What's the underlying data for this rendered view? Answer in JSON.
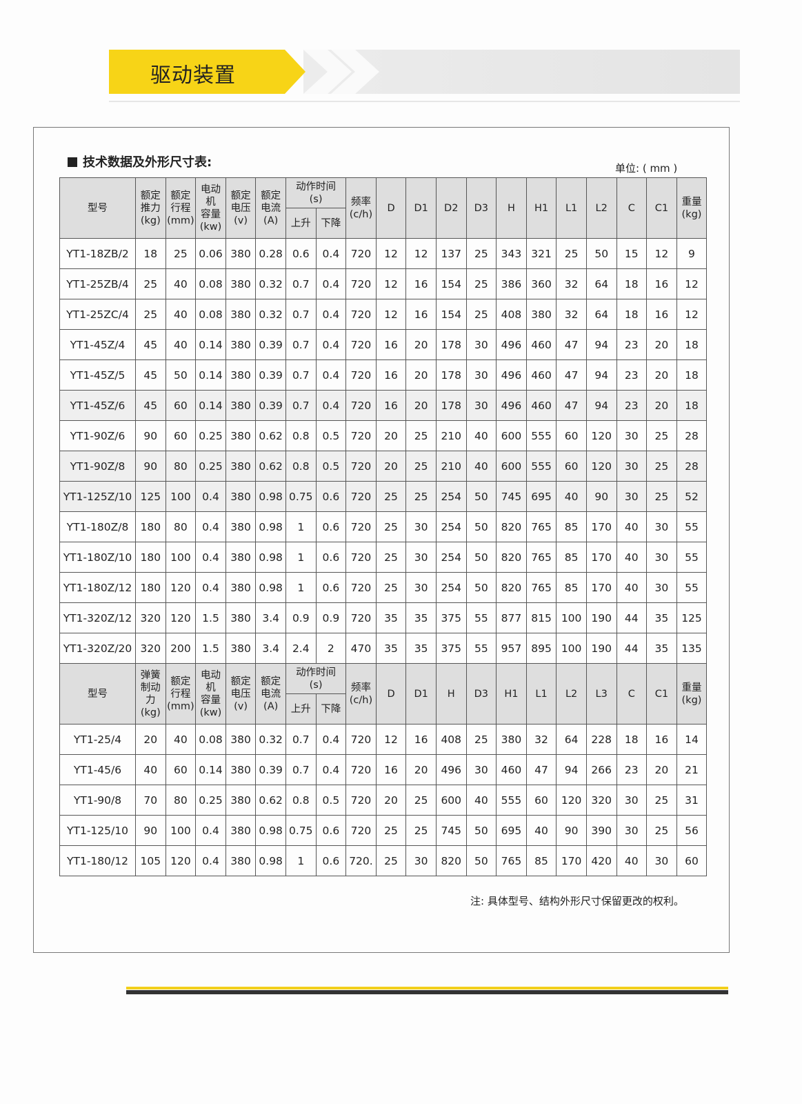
{
  "header": {
    "title": "驱动装置"
  },
  "section": {
    "title": "技术数据及外形尺寸表:",
    "unit": "单位: ( mm )"
  },
  "table1": {
    "model_header": "型号",
    "col_headers": [
      "额定\n推力\n(kg)",
      "额定\n行程\n(mm)",
      "电动机\n容量\n(kw)",
      "额定\n电压\n(v)",
      "额定\n电流\n(A)"
    ],
    "time_header": "动作时间\n(s)",
    "time_sub": [
      "上升",
      "下降"
    ],
    "freq_header": "频率\n(c/h)",
    "dim_headers": [
      "D",
      "D1",
      "D2",
      "D3",
      "H",
      "H1",
      "L1",
      "L2",
      "C",
      "C1"
    ],
    "weight_header": "重量\n(kg)",
    "rows": [
      [
        "YT1-18ZB/2",
        "18",
        "25",
        "0.06",
        "380",
        "0.28",
        "0.6",
        "0.4",
        "720",
        "12",
        "12",
        "137",
        "25",
        "343",
        "321",
        "25",
        "50",
        "15",
        "12",
        "9"
      ],
      [
        "YT1-25ZB/4",
        "25",
        "40",
        "0.08",
        "380",
        "0.32",
        "0.7",
        "0.4",
        "720",
        "12",
        "16",
        "154",
        "25",
        "386",
        "360",
        "32",
        "64",
        "18",
        "16",
        "12"
      ],
      [
        "YT1-25ZC/4",
        "25",
        "40",
        "0.08",
        "380",
        "0.32",
        "0.7",
        "0.4",
        "720",
        "12",
        "16",
        "154",
        "25",
        "408",
        "380",
        "32",
        "64",
        "18",
        "16",
        "12"
      ],
      [
        "YT1-45Z/4",
        "45",
        "40",
        "0.14",
        "380",
        "0.39",
        "0.7",
        "0.4",
        "720",
        "16",
        "20",
        "178",
        "30",
        "496",
        "460",
        "47",
        "94",
        "23",
        "20",
        "18"
      ],
      [
        "YT1-45Z/5",
        "45",
        "50",
        "0.14",
        "380",
        "0.39",
        "0.7",
        "0.4",
        "720",
        "16",
        "20",
        "178",
        "30",
        "496",
        "460",
        "47",
        "94",
        "23",
        "20",
        "18"
      ],
      [
        "YT1-45Z/6",
        "45",
        "60",
        "0.14",
        "380",
        "0.39",
        "0.7",
        "0.4",
        "720",
        "16",
        "20",
        "178",
        "30",
        "496",
        "460",
        "47",
        "94",
        "23",
        "20",
        "18"
      ],
      [
        "YT1-90Z/6",
        "90",
        "60",
        "0.25",
        "380",
        "0.62",
        "0.8",
        "0.5",
        "720",
        "20",
        "25",
        "210",
        "40",
        "600",
        "555",
        "60",
        "120",
        "30",
        "25",
        "28"
      ],
      [
        "YT1-90Z/8",
        "90",
        "80",
        "0.25",
        "380",
        "0.62",
        "0.8",
        "0.5",
        "720",
        "20",
        "25",
        "210",
        "40",
        "600",
        "555",
        "60",
        "120",
        "30",
        "25",
        "28"
      ],
      [
        "YT1-125Z/10",
        "125",
        "100",
        "0.4",
        "380",
        "0.98",
        "0.75",
        "0.6",
        "720",
        "25",
        "25",
        "254",
        "50",
        "745",
        "695",
        "40",
        "90",
        "30",
        "25",
        "52"
      ],
      [
        "YT1-180Z/8",
        "180",
        "80",
        "0.4",
        "380",
        "0.98",
        "1",
        "0.6",
        "720",
        "25",
        "30",
        "254",
        "50",
        "820",
        "765",
        "85",
        "170",
        "40",
        "30",
        "55"
      ],
      [
        "YT1-180Z/10",
        "180",
        "100",
        "0.4",
        "380",
        "0.98",
        "1",
        "0.6",
        "720",
        "25",
        "30",
        "254",
        "50",
        "820",
        "765",
        "85",
        "170",
        "40",
        "30",
        "55"
      ],
      [
        "YT1-180Z/12",
        "180",
        "120",
        "0.4",
        "380",
        "0.98",
        "1",
        "0.6",
        "720",
        "25",
        "30",
        "254",
        "50",
        "820",
        "765",
        "85",
        "170",
        "40",
        "30",
        "55"
      ],
      [
        "YT1-320Z/12",
        "320",
        "120",
        "1.5",
        "380",
        "3.4",
        "0.9",
        "0.9",
        "720",
        "35",
        "35",
        "375",
        "55",
        "877",
        "815",
        "100",
        "190",
        "44",
        "35",
        "125"
      ],
      [
        "YT1-320Z/20",
        "320",
        "200",
        "1.5",
        "380",
        "3.4",
        "2.4",
        "2",
        "470",
        "35",
        "35",
        "375",
        "55",
        "957",
        "895",
        "100",
        "190",
        "44",
        "35",
        "135"
      ]
    ]
  },
  "table2": {
    "model_header": "型号",
    "col_headers": [
      "弹簧\n制动力\n(kg)",
      "额定\n行程\n(mm)",
      "电动机\n容量\n(kw)",
      "额定\n电压\n(v)",
      "额定\n电流\n(A)"
    ],
    "time_header": "动作时间\n(s)",
    "time_sub": [
      "上升",
      "下降"
    ],
    "freq_header": "频率\n(c/h)",
    "dim_headers": [
      "D",
      "D1",
      "H",
      "D3",
      "H1",
      "L1",
      "L2",
      "L3",
      "C",
      "C1"
    ],
    "weight_header": "重量\n(kg)",
    "rows": [
      [
        "YT1-25/4",
        "20",
        "40",
        "0.08",
        "380",
        "0.32",
        "0.7",
        "0.4",
        "720",
        "12",
        "16",
        "408",
        "25",
        "380",
        "32",
        "64",
        "228",
        "18",
        "16",
        "14"
      ],
      [
        "YT1-45/6",
        "40",
        "60",
        "0.14",
        "380",
        "0.39",
        "0.7",
        "0.4",
        "720",
        "16",
        "20",
        "496",
        "30",
        "460",
        "47",
        "94",
        "266",
        "23",
        "20",
        "21"
      ],
      [
        "YT1-90/8",
        "70",
        "80",
        "0.25",
        "380",
        "0.62",
        "0.8",
        "0.5",
        "720",
        "20",
        "25",
        "600",
        "40",
        "555",
        "60",
        "120",
        "320",
        "30",
        "25",
        "31"
      ],
      [
        "YT1-125/10",
        "90",
        "100",
        "0.4",
        "380",
        "0.98",
        "0.75",
        "0.6",
        "720",
        "25",
        "25",
        "745",
        "50",
        "695",
        "40",
        "90",
        "390",
        "30",
        "25",
        "56"
      ],
      [
        "YT1-180/12",
        "105",
        "120",
        "0.4",
        "380",
        "0.98",
        "1",
        "0.6",
        "720.",
        "25",
        "30",
        "820",
        "50",
        "765",
        "85",
        "170",
        "420",
        "40",
        "30",
        "60"
      ]
    ]
  },
  "note": "注: 具体型号、结构外形尺寸保留更改的权利。",
  "colors": {
    "banner": "#f7d417",
    "header_bg": "#dedede"
  }
}
